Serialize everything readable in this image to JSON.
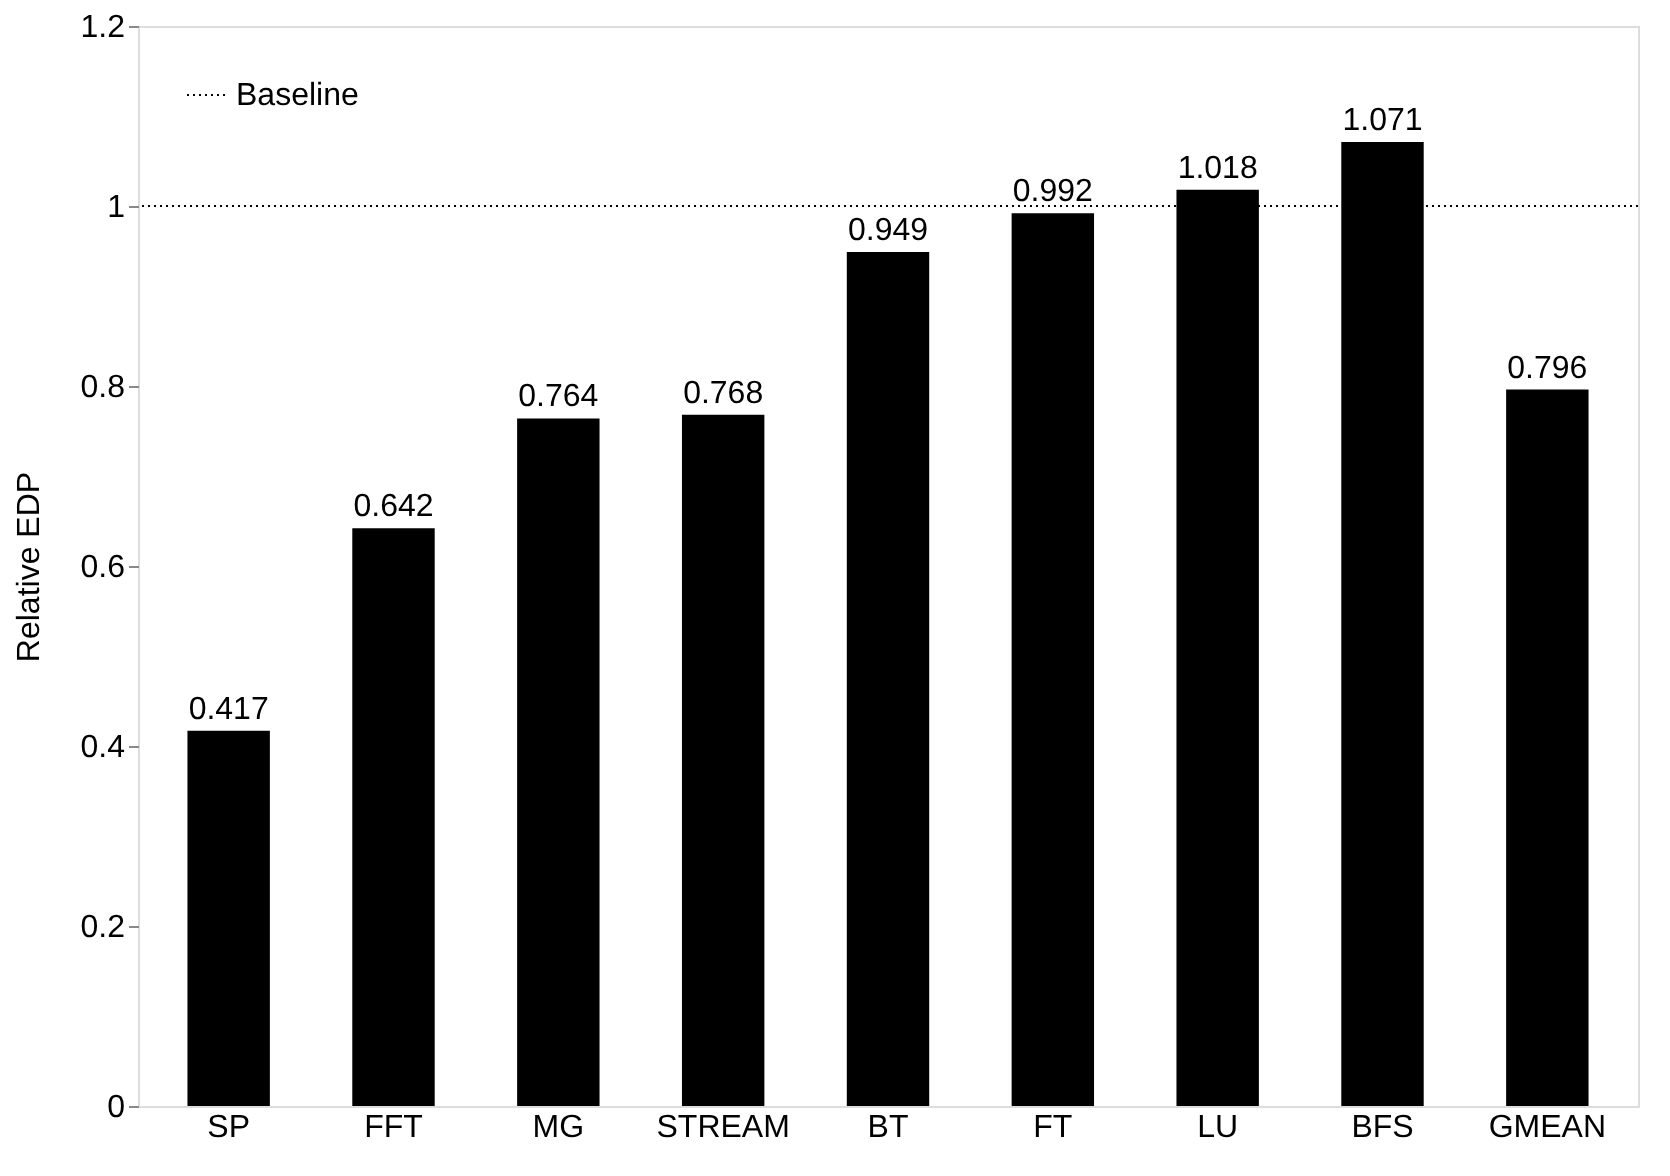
{
  "chart_data": {
    "type": "bar",
    "ylabel": "Relative EDP",
    "categories": [
      "SP",
      "FFT",
      "MG",
      "STREAM",
      "BT",
      "FT",
      "LU",
      "BFS",
      "GMEAN"
    ],
    "series": [
      {
        "color": "#000000",
        "values": [
          0.417,
          0.642,
          0.764,
          0.768,
          0.949,
          0.992,
          1.018,
          1.071,
          0.796
        ]
      }
    ],
    "ylim": [
      0,
      1.2
    ],
    "yticks": [
      0,
      0.2,
      0.4,
      0.6,
      0.8,
      1,
      1.2
    ],
    "ref_lines": [
      {
        "axis": "y",
        "value": 1,
        "label": "Baseline",
        "color": "#000000",
        "line_style": "dotted"
      }
    ],
    "data_labels": true,
    "grid": false,
    "legend": "top left"
  }
}
